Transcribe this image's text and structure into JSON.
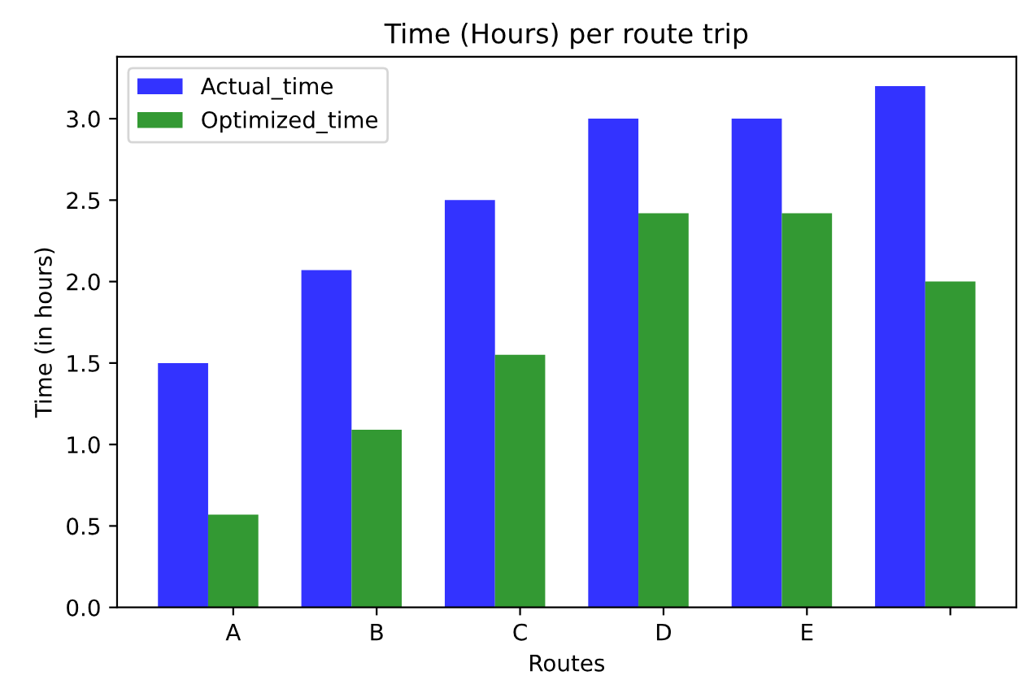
{
  "chart_data": {
    "type": "bar",
    "title": "Time (Hours) per route trip",
    "xlabel": "Routes",
    "ylabel": "Time (in hours)",
    "categories": [
      "A",
      "B",
      "C",
      "D",
      "E",
      null
    ],
    "series": [
      {
        "name": "Actual_time",
        "color": "#3333ff",
        "values": [
          1.5,
          2.07,
          2.5,
          3.0,
          3.0,
          3.2
        ]
      },
      {
        "name": "Optimized_time",
        "color": "#339933",
        "values": [
          0.57,
          1.09,
          1.55,
          2.42,
          2.42,
          2.0
        ]
      }
    ],
    "ylim": [
      0,
      3.38
    ],
    "yticks": [
      {
        "value": 0,
        "label": "0.0"
      },
      0.5,
      {
        "value": 1,
        "label": "1.0"
      },
      1.5,
      {
        "value": 2,
        "label": "2.0"
      },
      2.5,
      {
        "value": 3,
        "label": "3.0"
      }
    ],
    "legend": "top left",
    "grid": false
  }
}
